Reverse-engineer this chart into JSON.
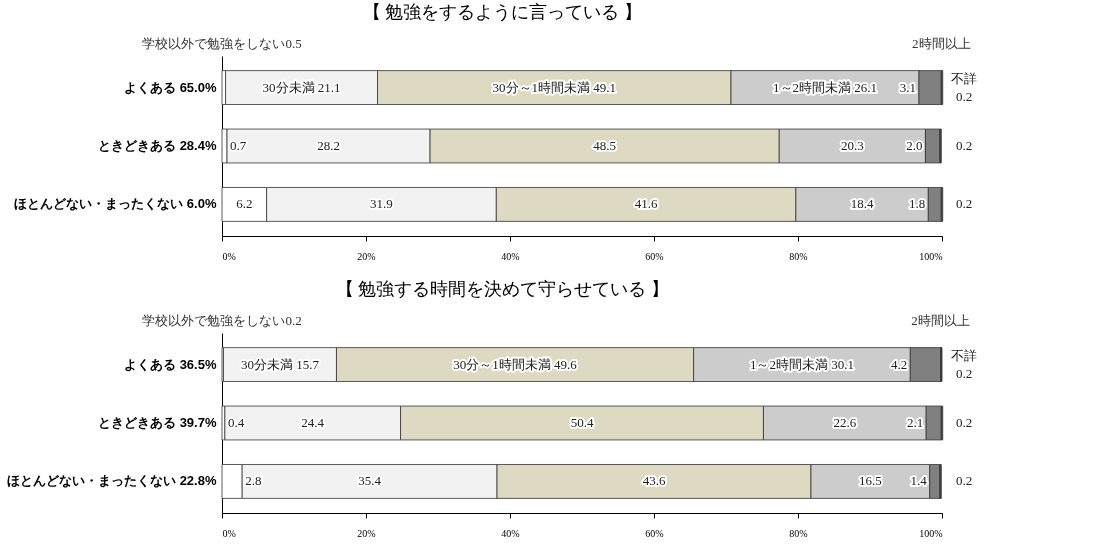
{
  "chart_data": [
    {
      "type": "bar",
      "orientation": "horizontal",
      "stacked": true,
      "title": "【 勉強をするように言っている 】",
      "categories": [
        "よくある 65.0%",
        "ときどきある 28.4%",
        "ほとんどない・まったくない 6.0%"
      ],
      "series": [
        {
          "name": "学校以外で勉強をしない",
          "color": "#ffffff",
          "values": [
            0.5,
            0.7,
            6.2
          ],
          "value_labels": [
            "0.5",
            "0.7",
            "6.2"
          ]
        },
        {
          "name": "30分未満",
          "color": "#f2f2f2",
          "values": [
            21.1,
            28.2,
            31.9
          ],
          "value_labels": [
            "21.1",
            "28.2",
            "31.9"
          ]
        },
        {
          "name": "30分～1時間未満",
          "color": "#ddd9c3",
          "values": [
            49.1,
            48.5,
            41.6
          ],
          "value_labels": [
            "49.1",
            "48.5",
            "41.6"
          ]
        },
        {
          "name": "1～2時間未満",
          "color": "#cccccc",
          "values": [
            26.1,
            20.3,
            18.4
          ],
          "value_labels": [
            "26.1",
            "20.3",
            "18.4"
          ]
        },
        {
          "name": "2時間以上",
          "color": "#808080",
          "values": [
            3.1,
            2.0,
            1.8
          ],
          "value_labels": [
            "3.1",
            "2.0",
            "1.8"
          ]
        },
        {
          "name": "不詳",
          "color": "#404040",
          "values": [
            0.2,
            0.2,
            0.2
          ],
          "value_labels": [
            "0.2",
            "0.2",
            "0.2"
          ]
        }
      ],
      "xlim": [
        0,
        100
      ],
      "xticks": [
        {
          "value": 0,
          "label": "0%"
        },
        {
          "value": 20,
          "label": "20%"
        },
        {
          "value": 40,
          "label": "40%"
        },
        {
          "value": 60,
          "label": "60%"
        },
        {
          "value": 80,
          "label": "80%"
        },
        {
          "value": 100,
          "label": "100%"
        }
      ]
    },
    {
      "type": "bar",
      "orientation": "horizontal",
      "stacked": true,
      "title": "【 勉強する時間を決めて守らせている 】",
      "categories": [
        "よくある 36.5%",
        "ときどきある 39.7%",
        "ほとんどない・まったくない 22.8%"
      ],
      "series": [
        {
          "name": "学校以外で勉強をしない",
          "color": "#ffffff",
          "values": [
            0.2,
            0.4,
            2.8
          ],
          "value_labels": [
            "0.2",
            "0.4",
            "2.8"
          ]
        },
        {
          "name": "30分未満",
          "color": "#f2f2f2",
          "values": [
            15.7,
            24.4,
            35.4
          ],
          "value_labels": [
            "15.7",
            "24.4",
            "35.4"
          ]
        },
        {
          "name": "30分～1時間未満",
          "color": "#ddd9c3",
          "values": [
            49.6,
            50.4,
            43.6
          ],
          "value_labels": [
            "49.6",
            "50.4",
            "43.6"
          ]
        },
        {
          "name": "1～2時間未満",
          "color": "#cccccc",
          "values": [
            30.1,
            22.6,
            16.5
          ],
          "value_labels": [
            "30.1",
            "22.6",
            "16.5"
          ]
        },
        {
          "name": "2時間以上",
          "color": "#808080",
          "values": [
            4.2,
            2.1,
            1.4
          ],
          "value_labels": [
            "4.2",
            "2.1",
            "1.4"
          ]
        },
        {
          "name": "不詳",
          "color": "#404040",
          "values": [
            0.2,
            0.2,
            0.2
          ],
          "value_labels": [
            "0.2",
            "0.2",
            "0.2"
          ]
        }
      ],
      "xlim": [
        0,
        100
      ],
      "xticks": [
        {
          "value": 0,
          "label": "0%"
        },
        {
          "value": 20,
          "label": "20%"
        },
        {
          "value": 40,
          "label": "40%"
        },
        {
          "value": 60,
          "label": "60%"
        },
        {
          "value": 80,
          "label": "80%"
        },
        {
          "value": 100,
          "label": "100%"
        }
      ]
    }
  ]
}
